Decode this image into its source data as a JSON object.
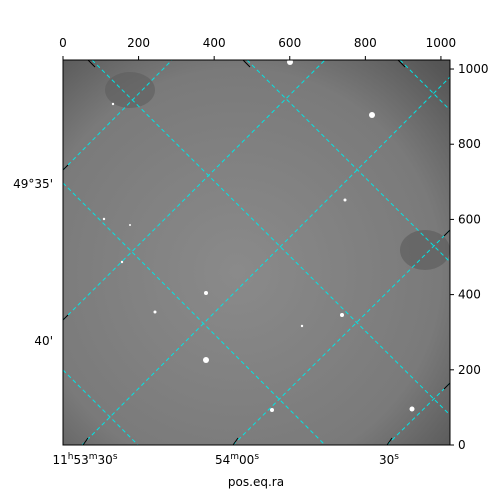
{
  "chart_data": {
    "type": "image",
    "xlabel": "pos.eq.ra",
    "xlim": [
      0,
      1024
    ],
    "xticks": [
      0,
      200,
      400,
      600,
      800,
      1000
    ],
    "ylim": [
      0,
      1024
    ],
    "yticks": [
      0,
      200,
      400,
      600,
      800,
      1000
    ],
    "ra_ticks": [
      "11h53m30s",
      "54m00s",
      "30s"
    ],
    "dec_ticks": [
      "49°35'",
      "40'"
    ],
    "grid": true,
    "colormap": "gray"
  }
}
